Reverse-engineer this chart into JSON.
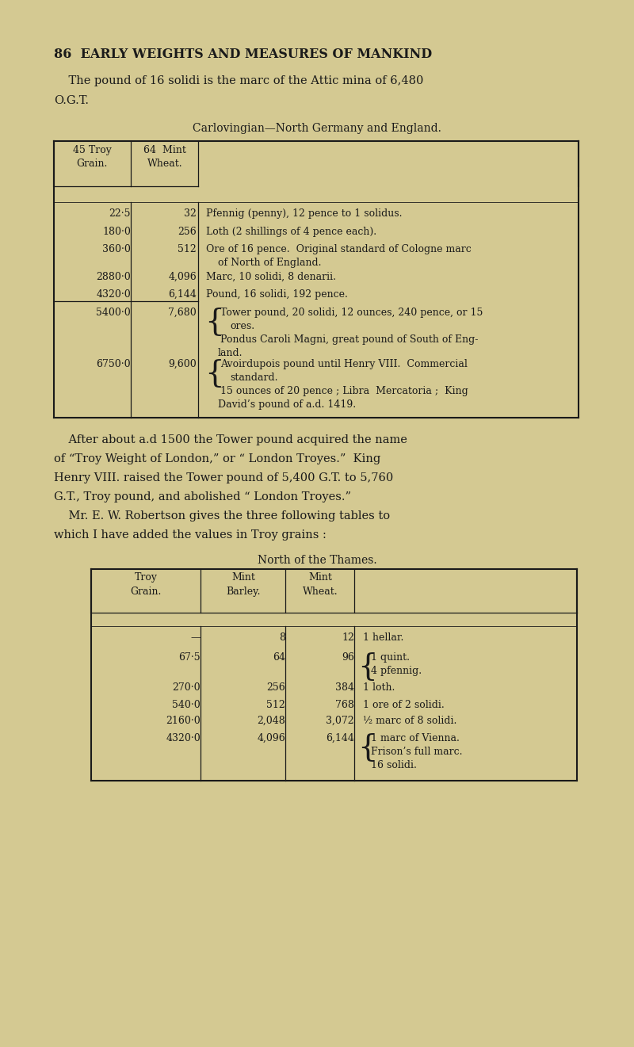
{
  "bg_color": "#d4c992",
  "text_color": "#1a1a1a",
  "page_title": "86  EARLY WEIGHTS AND MEASURES OF MANKIND",
  "intro_line1": "    The pound of 16 solidi is the marc of the Attic mina of 6,480",
  "intro_line2": "O.G.T.",
  "table1_title": "Carlovingian—North Germany and England.",
  "body_lines": [
    "    After about a.d 1500 the Tower pound acquired the name",
    "of “Troy Weight of London,” or “ London Troyes.”  King",
    "Henry VIII. raised the Tower pound of 5,400 G.T. to 5,760",
    "G.T., Troy pound, and abolished “ London Troyes.”",
    "    Mr. E. W. Robertson gives the three following tables to",
    "which I have added the values in Troy grains :"
  ],
  "table2_title": "North of the Thames."
}
